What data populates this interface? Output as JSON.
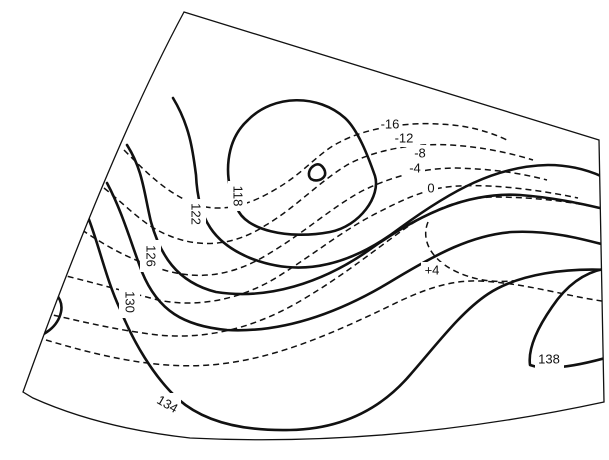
{
  "colors": {
    "line": "#111111",
    "background": "#ffffff"
  },
  "chart_data": {
    "type": "contour-map",
    "solid_contour_labels": [
      "118",
      "122",
      "126",
      "130",
      "134",
      "138"
    ],
    "dashed_contour_labels": [
      "-16",
      "-12",
      "-8",
      "-4",
      "0",
      "+4"
    ]
  }
}
